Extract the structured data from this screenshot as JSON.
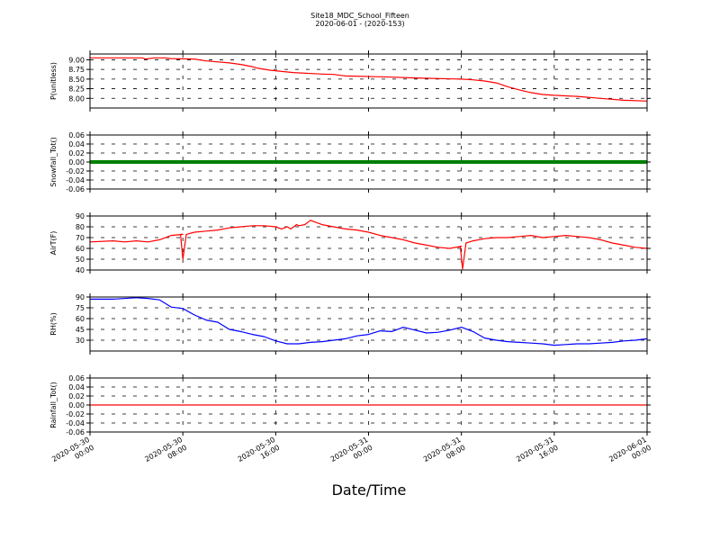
{
  "chart_data": {
    "type": "line",
    "title": "Site18_MDC_School_Fifteen",
    "subtitle": "2020-06-01 - (2020-153)",
    "xlabel": "Date/Time",
    "x_ticks": [
      {
        "line1": "2020-05-30",
        "line2": "00:00"
      },
      {
        "line1": "2020-05-30",
        "line2": "08:00"
      },
      {
        "line1": "2020-05-30",
        "line2": "16:00"
      },
      {
        "line1": "2020-05-31",
        "line2": "00:00"
      },
      {
        "line1": "2020-05-31",
        "line2": "08:00"
      },
      {
        "line1": "2020-05-31",
        "line2": "16:00"
      },
      {
        "line1": "2020-06-01",
        "line2": "00:00"
      }
    ],
    "xlim": [
      "2020-05-30 00:00",
      "2020-06-01 00:00"
    ],
    "grid": true,
    "panels": [
      {
        "ylabel": "P(unitless)",
        "ylim": [
          7.75,
          9.15
        ],
        "yticks": [
          "8.00",
          "8.25",
          "8.50",
          "8.75",
          "9.00"
        ],
        "ytick_values": [
          8.0,
          8.25,
          8.5,
          8.75,
          9.0
        ],
        "color": "#ff0000",
        "x_hours": [
          0,
          4.5,
          4.8,
          5.5,
          6.5,
          7,
          9,
          10,
          12,
          13,
          14,
          14.5,
          15.5,
          17.5,
          20,
          21,
          22,
          25,
          26,
          28,
          32,
          33,
          34,
          35,
          36,
          37,
          38,
          39,
          40,
          42,
          44,
          46,
          48
        ],
        "y": [
          9.05,
          9.05,
          9.02,
          9.05,
          9.05,
          9.03,
          9.02,
          8.97,
          8.92,
          8.88,
          8.82,
          8.78,
          8.73,
          8.67,
          8.63,
          8.62,
          8.58,
          8.56,
          8.55,
          8.53,
          8.5,
          8.48,
          8.45,
          8.4,
          8.3,
          8.22,
          8.15,
          8.1,
          8.08,
          8.05,
          8.0,
          7.95,
          7.93
        ]
      },
      {
        "ylabel": "Snowfall_Tot()",
        "ylim": [
          -0.06,
          0.06
        ],
        "yticks": [
          "-0.06",
          "-0.04",
          "-0.02",
          "0.00",
          "0.02",
          "0.04",
          "0.06"
        ],
        "ytick_values": [
          -0.06,
          -0.04,
          -0.02,
          0.0,
          0.02,
          0.04,
          0.06
        ],
        "color": "#008000",
        "markers": true,
        "x_hours": [
          0,
          48
        ],
        "y": [
          0,
          0
        ]
      },
      {
        "ylabel": "AirT(F)",
        "ylim": [
          40,
          90
        ],
        "yticks": [
          "40",
          "50",
          "60",
          "70",
          "80",
          "90"
        ],
        "ytick_values": [
          40,
          50,
          60,
          70,
          80,
          90
        ],
        "color": "#ff0000",
        "x_hours": [
          0,
          2,
          3,
          4,
          5,
          6,
          7,
          8,
          7.8,
          8.0,
          8.3,
          9,
          10,
          11,
          12,
          13,
          14,
          15,
          16,
          16.5,
          17,
          17.3,
          17.8,
          18,
          18.5,
          19,
          20,
          21,
          22,
          23,
          24,
          25,
          26,
          27,
          28,
          29,
          30,
          31,
          32,
          31.9,
          32.1,
          32.4,
          33,
          34,
          35,
          36,
          37,
          38,
          39,
          40,
          41,
          42,
          43,
          44,
          45,
          46,
          47,
          48
        ],
        "y": [
          66,
          67,
          66,
          67,
          66,
          68,
          72,
          73,
          73,
          50,
          73,
          75,
          76,
          77,
          79,
          80,
          81,
          81,
          80,
          78,
          80,
          78,
          82,
          81,
          82,
          86,
          82,
          80,
          78,
          77,
          75,
          72,
          70,
          68,
          65,
          63,
          61,
          60,
          62,
          62,
          41,
          65,
          67,
          69,
          70,
          70,
          71,
          72,
          70,
          71,
          72,
          71,
          70,
          68,
          65,
          63,
          61,
          60
        ]
      },
      {
        "ylabel": "RH(%)",
        "ylim": [
          15,
          90
        ],
        "yticks": [
          "30",
          "45",
          "60",
          "75",
          "90"
        ],
        "ytick_values": [
          30,
          45,
          60,
          75,
          90
        ],
        "color": "#0000ff",
        "x_hours": [
          0,
          2,
          4,
          5,
          6,
          7,
          8,
          9,
          10,
          11,
          12,
          13,
          14,
          15,
          16,
          17,
          18,
          19,
          20,
          21,
          22,
          23,
          24,
          25,
          26,
          27,
          28,
          29,
          30,
          31,
          32,
          33,
          34,
          35,
          36,
          37,
          38,
          39,
          40,
          41,
          42,
          43,
          44,
          45,
          46,
          47,
          48
        ],
        "y": [
          87,
          87,
          89,
          88,
          86,
          76,
          74,
          65,
          58,
          55,
          45,
          42,
          38,
          35,
          29,
          25,
          25,
          27,
          28,
          30,
          32,
          36,
          38,
          43,
          42,
          48,
          44,
          40,
          41,
          44,
          48,
          42,
          33,
          30,
          28,
          27,
          26,
          25,
          23,
          24,
          25,
          25,
          26,
          27,
          29,
          30,
          32
        ]
      },
      {
        "ylabel": "Rainfall_Tot()",
        "ylim": [
          -0.06,
          0.06
        ],
        "yticks": [
          "-0.06",
          "-0.04",
          "-0.02",
          "0.00",
          "0.02",
          "0.04",
          "0.06"
        ],
        "ytick_values": [
          -0.06,
          -0.04,
          -0.02,
          0.0,
          0.02,
          0.04,
          0.06
        ],
        "color": "#ff0000",
        "x_hours": [
          0,
          48
        ],
        "y": [
          0,
          0
        ]
      }
    ]
  }
}
